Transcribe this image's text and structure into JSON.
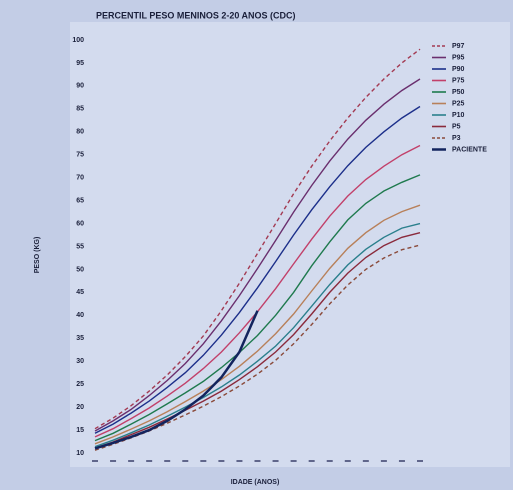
{
  "chart_data": {
    "type": "line",
    "title": "PERCENTIL PESO MENINOS 2-20 ANOS (CDC)",
    "y_label": "PESO (KG)",
    "x_label": "IDADE (ANOS)",
    "categories": [
      null,
      null,
      null,
      null,
      null,
      null,
      null,
      null,
      null,
      null,
      null,
      null,
      null,
      null,
      null,
      null,
      null,
      null,
      null
    ],
    "ylim": [
      10,
      100
    ],
    "yticks": [
      10,
      15,
      20,
      25,
      30,
      35,
      40,
      45,
      50,
      55,
      60,
      65,
      70,
      75,
      80,
      85,
      90,
      95,
      100
    ],
    "legend": "right",
    "series": [
      {
        "name": "P97",
        "color": "#a33a52",
        "dashed": true,
        "values": [
          15.3,
          17.6,
          20.3,
          23.5,
          27,
          31,
          35.5,
          41,
          47,
          53.5,
          60,
          66.5,
          72.5,
          78,
          83,
          87.5,
          91.5,
          95,
          98
        ]
      },
      {
        "name": "P95",
        "color": "#6a2f6e",
        "values": [
          14.8,
          17,
          19.5,
          22.5,
          25.8,
          29.5,
          33.8,
          38.8,
          44.3,
          50.2,
          56.3,
          62.5,
          68.3,
          73.6,
          78.4,
          82.5,
          86,
          89,
          91.5
        ]
      },
      {
        "name": "P90",
        "color": "#1c2f8a",
        "values": [
          14.3,
          16.3,
          18.7,
          21.3,
          24.3,
          27.5,
          31.3,
          35.7,
          40.6,
          46,
          51.7,
          57.5,
          63,
          68,
          72.6,
          76.6,
          80,
          83,
          85.5
        ]
      },
      {
        "name": "P75",
        "color": "#c2406a",
        "values": [
          13.5,
          15.3,
          17.5,
          19.8,
          22.4,
          25.2,
          28.4,
          32,
          36.2,
          40.8,
          45.8,
          51.2,
          56.6,
          61.6,
          66,
          69.6,
          72.5,
          75,
          77
        ]
      },
      {
        "name": "P50",
        "color": "#1f7a4e",
        "values": [
          12.7,
          14.3,
          16.3,
          18.4,
          20.7,
          23.1,
          25.6,
          28.6,
          31.9,
          35.6,
          40,
          45,
          50.8,
          56,
          60.8,
          64.4,
          67.1,
          69,
          70.6
        ]
      },
      {
        "name": "P25",
        "color": "#b8805a",
        "values": [
          12,
          13.5,
          15.2,
          17,
          19,
          21.2,
          23.5,
          26,
          28.9,
          32.2,
          36,
          40.3,
          45.3,
          50.2,
          54.6,
          58,
          60.7,
          62.6,
          64
        ]
      },
      {
        "name": "P10",
        "color": "#2a7f8c",
        "values": [
          11.4,
          12.8,
          14.4,
          16.1,
          18,
          20,
          22.1,
          24.4,
          27,
          30,
          33.3,
          37.3,
          42,
          46.7,
          51,
          54.4,
          57,
          59,
          60
        ]
      },
      {
        "name": "P5",
        "color": "#8a2a3c",
        "values": [
          11.1,
          12.4,
          14,
          15.6,
          17.4,
          19.3,
          21.3,
          23.5,
          26,
          28.8,
          32,
          35.8,
          40.3,
          45,
          49.2,
          52.6,
          55.2,
          57,
          58
        ]
      },
      {
        "name": "P3",
        "color": "#8a4a3a",
        "dashed": true,
        "values": [
          10.6,
          11.9,
          13.3,
          14.8,
          16.5,
          18.3,
          20.2,
          22.3,
          24.6,
          27.2,
          30.2,
          33.8,
          38,
          42.5,
          46.6,
          50,
          52.5,
          54.3,
          55.3
        ]
      },
      {
        "name": "PACIENTE",
        "color": "#13245e",
        "width": 2.5,
        "values": [
          11,
          12.2,
          13.5,
          15,
          17,
          19.5,
          22.5,
          26.5,
          32,
          41,
          null,
          null,
          null,
          null,
          null,
          null,
          null,
          null,
          null
        ]
      }
    ]
  }
}
